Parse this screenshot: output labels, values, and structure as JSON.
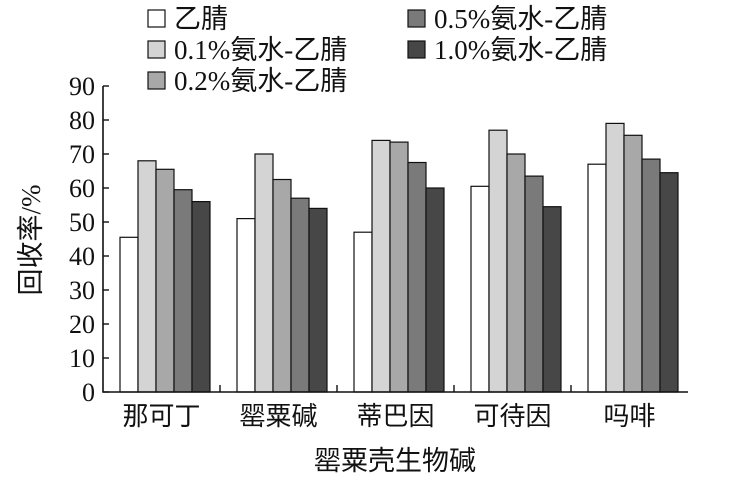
{
  "chart_data": {
    "type": "bar",
    "categories": [
      "那可丁",
      "罂粟碱",
      "蒂巴因",
      "可待因",
      "吗啡"
    ],
    "series": [
      {
        "name": "乙腈",
        "color": "#ffffff",
        "values": [
          45.5,
          51,
          47,
          60.5,
          67
        ]
      },
      {
        "name": "0.1%氨水-乙腈",
        "color": "#d4d4d4",
        "values": [
          68,
          70,
          74,
          77,
          79
        ]
      },
      {
        "name": "0.2%氨水-乙腈",
        "color": "#a8a8a8",
        "values": [
          65.5,
          62.5,
          73.5,
          70,
          75.5
        ]
      },
      {
        "name": "0.5%氨水-乙腈",
        "color": "#7a7a7a",
        "values": [
          59.5,
          57,
          67.5,
          63.5,
          68.5
        ]
      },
      {
        "name": "1.0%氨水-乙腈",
        "color": "#474747",
        "values": [
          56,
          54,
          60,
          54.5,
          64.5
        ]
      }
    ],
    "ylim": [
      0,
      90
    ],
    "yticks": [
      0,
      10,
      20,
      30,
      40,
      50,
      60,
      70,
      80,
      90
    ],
    "ylabel": "回收率/%",
    "xlabel": "罂粟壳生物碱",
    "legend": {
      "placement": "top",
      "columns": 2
    },
    "grid": false
  }
}
